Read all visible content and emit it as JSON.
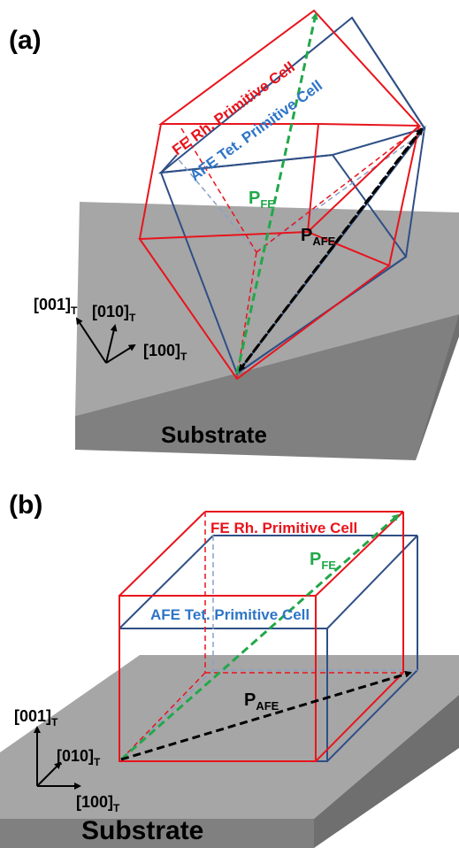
{
  "panels": [
    {
      "id": "a",
      "label": "(a)",
      "substrate_label": "Substrate",
      "fe_cell_label": "FE Rh. Primitive Cell",
      "afe_cell_label": "AFE Tet. Primitive Cell",
      "p_fe": {
        "main": "P",
        "sub": "FE"
      },
      "p_afe": {
        "main": "P",
        "sub": "AFE"
      },
      "axes": [
        {
          "main": "[001]",
          "sub": "T"
        },
        {
          "main": "[010]",
          "sub": "T"
        },
        {
          "main": "[100]",
          "sub": "T"
        }
      ]
    },
    {
      "id": "b",
      "label": "(b)",
      "substrate_label": "Substrate",
      "fe_cell_label": "FE Rh. Primitive Cell",
      "afe_cell_label": "AFE Tet. Primitive Cell",
      "p_fe": {
        "main": "P",
        "sub": "FE"
      },
      "p_afe": {
        "main": "P",
        "sub": "AFE"
      },
      "axes": [
        {
          "main": "[001]",
          "sub": "T"
        },
        {
          "main": "[010]",
          "sub": "T"
        },
        {
          "main": "[100]",
          "sub": "T"
        }
      ]
    }
  ],
  "colors": {
    "fe_red": "#e8141c",
    "afe_blue": "#2f4f86",
    "afe_label_blue": "#2e75c7",
    "p_fe_green": "#22a84a",
    "p_afe_black": "#000000",
    "substrate_top": "#a6a6a6",
    "substrate_side": "#808080"
  }
}
